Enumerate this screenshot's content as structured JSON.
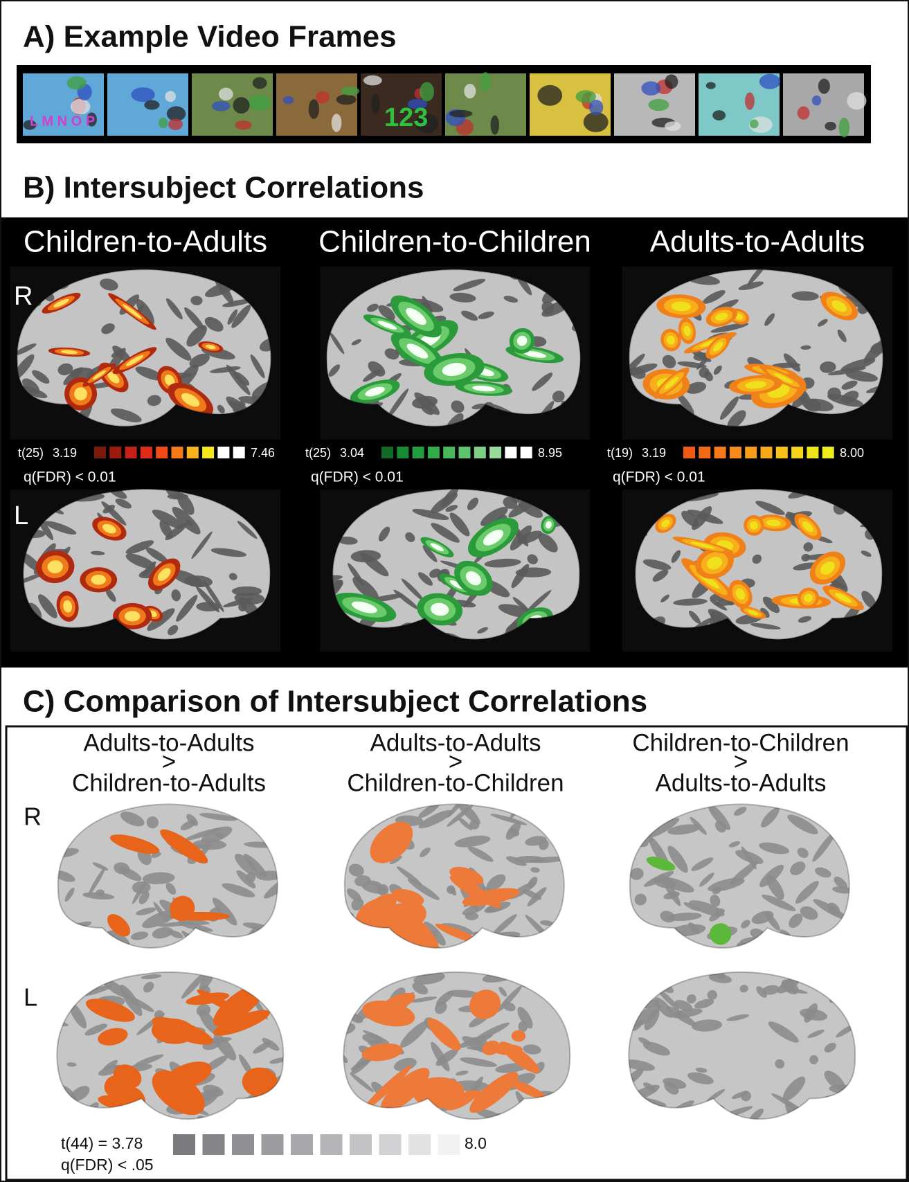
{
  "panel_a": {
    "title": "A) Example Video Frames",
    "frame_texts": [
      "L M N O P",
      "123"
    ]
  },
  "panel_b": {
    "title": "B) Intersubject Correlations",
    "hemispheres": [
      "R",
      "L"
    ],
    "columns": [
      {
        "heading": "Children-to-Adults",
        "stat": "t(25)",
        "min": "3.19",
        "max": "7.46",
        "threshold": "q(FDR) < 0.01"
      },
      {
        "heading": "Children-to-Children",
        "stat": "t(25)",
        "min": "3.04",
        "max": "8.95",
        "threshold": "q(FDR) < 0.01"
      },
      {
        "heading": "Adults-to-Adults",
        "stat": "t(19)",
        "min": "3.19",
        "max": "8.00",
        "threshold": "q(FDR) < 0.01"
      }
    ]
  },
  "panel_c": {
    "title": "C) Comparison of Intersubject Correlations",
    "hemispheres": [
      "R",
      "L"
    ],
    "columns": [
      {
        "top": "Adults-to-Adults",
        "operator": ">",
        "bottom": "Children-to-Adults"
      },
      {
        "top": "Adults-to-Adults",
        "operator": ">",
        "bottom": "Children-to-Children"
      },
      {
        "top": "Children-to-Children",
        "operator": ">",
        "bottom": "Adults-to-Adults"
      }
    ],
    "colorbar": {
      "min_label": "t(44) = 3.78",
      "max": "8.0",
      "threshold": "q(FDR) < .05"
    }
  }
}
